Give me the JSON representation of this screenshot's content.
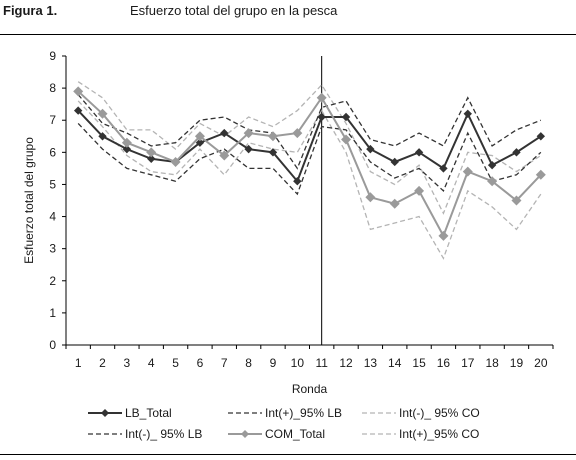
{
  "figure_label": "Figura 1.",
  "figure_title": "Esfuerzo total del grupo en la pesca",
  "chart_data": {
    "type": "line",
    "title": "Esfuerzo total del grupo en la pesca",
    "xlabel": "Ronda",
    "ylabel": "Esfuerzo total del grupo",
    "x": [
      1,
      2,
      3,
      4,
      5,
      6,
      7,
      8,
      9,
      10,
      11,
      12,
      13,
      14,
      15,
      16,
      17,
      18,
      19,
      20
    ],
    "ylim": [
      0,
      9
    ],
    "yticks": [
      0,
      1,
      2,
      3,
      4,
      5,
      6,
      7,
      8,
      9
    ],
    "grid": false,
    "legend_position": "bottom",
    "vertical_marker_x": 10.5,
    "series": [
      {
        "name": "LB_Total",
        "color": "#333333",
        "style": "solid",
        "marker": "diamond",
        "values": [
          7.3,
          6.5,
          6.1,
          5.8,
          5.7,
          6.3,
          6.6,
          6.1,
          6.0,
          5.1,
          7.1,
          7.1,
          6.1,
          5.7,
          6.0,
          5.5,
          7.2,
          5.6,
          6.0,
          6.5
        ]
      },
      {
        "name": "Int(-)_ 95% LB",
        "color": "#333333",
        "style": "dashed",
        "marker": "none",
        "values": [
          6.9,
          6.1,
          5.5,
          5.3,
          5.1,
          5.8,
          6.1,
          5.5,
          5.5,
          4.7,
          6.8,
          6.7,
          5.7,
          5.2,
          5.5,
          4.8,
          6.6,
          5.1,
          5.3,
          6.0
        ]
      },
      {
        "name": "Int(+)_95% LB",
        "color": "#333333",
        "style": "dashed",
        "marker": "none",
        "values": [
          7.8,
          6.9,
          6.6,
          6.2,
          6.3,
          7.0,
          7.1,
          6.7,
          6.6,
          5.5,
          7.4,
          7.6,
          6.4,
          6.2,
          6.6,
          6.2,
          7.7,
          6.2,
          6.7,
          7.0
        ]
      },
      {
        "name": "COM_Total",
        "color": "#9a9a9a",
        "style": "solid",
        "marker": "diamond",
        "values": [
          7.9,
          7.2,
          6.3,
          6.0,
          5.7,
          6.5,
          5.9,
          6.6,
          6.5,
          6.6,
          7.7,
          6.4,
          4.6,
          4.4,
          4.8,
          3.4,
          5.4,
          5.1,
          4.5,
          5.3
        ]
      },
      {
        "name": "Int(-)_ 95% CO",
        "color": "#b4b4b4",
        "style": "dashed",
        "marker": "none",
        "values": [
          7.6,
          6.8,
          5.9,
          5.4,
          5.3,
          6.1,
          5.3,
          6.3,
          6.1,
          6.0,
          7.3,
          6.0,
          3.6,
          3.8,
          4.0,
          2.7,
          4.8,
          4.3,
          3.6,
          4.7
        ]
      },
      {
        "name": "Int(+)_95% CO",
        "color": "#b4b4b4",
        "style": "dashed",
        "marker": "none",
        "values": [
          8.2,
          7.7,
          6.7,
          6.7,
          6.1,
          6.9,
          6.5,
          7.1,
          6.8,
          7.3,
          8.1,
          6.9,
          5.4,
          5.0,
          5.6,
          4.1,
          6.0,
          5.9,
          5.4,
          5.9
        ]
      }
    ]
  }
}
